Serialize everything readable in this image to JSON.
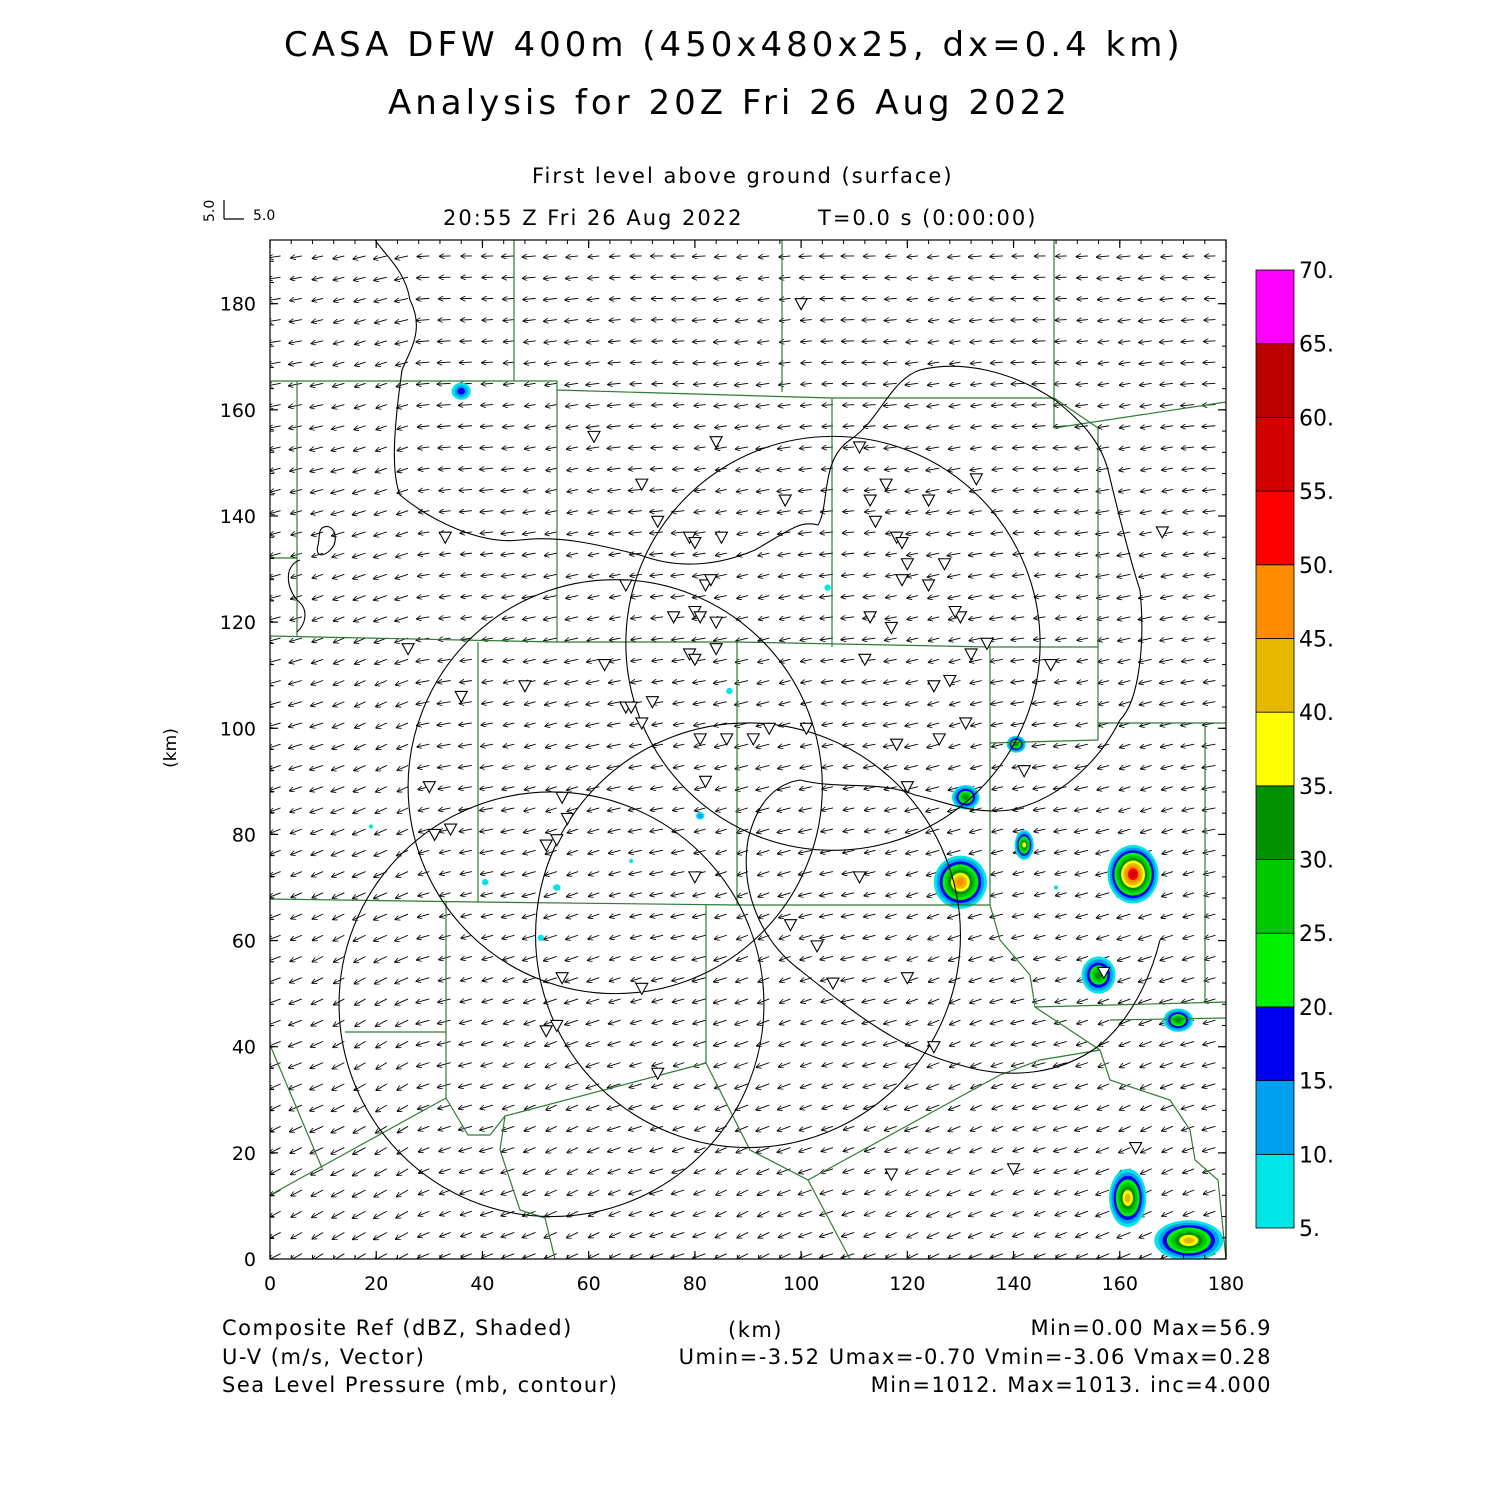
{
  "header": {
    "title_line1": "CASA DFW 400m (450x480x25, dx=0.4 km)",
    "title_line2": "Analysis for 20Z Fri 26 Aug 2022",
    "level": "First level above ground (surface)",
    "valid_time": "20:55 Z Fri 26 Aug 2022",
    "forecast_time": "T=0.0 s (0:00:00)",
    "vector_key_x": "5.0",
    "vector_key_y": "5.0"
  },
  "map": {
    "x_axis_unit": "(km)",
    "y_axis_unit": "(km)",
    "x_ticks": [
      "0",
      "20",
      "40",
      "60",
      "80",
      "100",
      "120",
      "140",
      "160",
      "180"
    ],
    "y_ticks": [
      "0",
      "20",
      "40",
      "60",
      "80",
      "100",
      "120",
      "140",
      "160",
      "180"
    ],
    "x_range": [
      0,
      180
    ],
    "y_range": [
      0,
      192
    ],
    "county_line_color": "#2e7d32",
    "contour_color": "#000000",
    "radar_rings": [
      {
        "cx": 106,
        "cy": 116,
        "r": 39
      },
      {
        "cx": 65,
        "cy": 89,
        "r": 39
      },
      {
        "cx": 90,
        "cy": 61,
        "r": 40
      },
      {
        "cx": 53,
        "cy": 48,
        "r": 40
      }
    ],
    "reflectivity_cells": [
      {
        "x": 36,
        "y": 163.5,
        "rx": 1.8,
        "ry": 1.6,
        "peak": 17
      },
      {
        "x": 131,
        "y": 87,
        "rx": 2.6,
        "ry": 2.3,
        "peak": 32
      },
      {
        "x": 140.5,
        "y": 97,
        "rx": 1.8,
        "ry": 1.6,
        "peak": 30
      },
      {
        "x": 142,
        "y": 78,
        "rx": 1.8,
        "ry": 2.8,
        "peak": 38
      },
      {
        "x": 130,
        "y": 71,
        "rx": 5,
        "ry": 5,
        "peak": 47
      },
      {
        "x": 162.5,
        "y": 72.5,
        "rx": 4.8,
        "ry": 5.5,
        "peak": 56.9
      },
      {
        "x": 156,
        "y": 53.5,
        "rx": 3.2,
        "ry": 3.5,
        "peak": 32
      },
      {
        "x": 171,
        "y": 45,
        "rx": 2.8,
        "ry": 2.2,
        "peak": 32
      },
      {
        "x": 161.5,
        "y": 11.5,
        "rx": 3.5,
        "ry": 5.5,
        "peak": 40
      },
      {
        "x": 173,
        "y": 3.5,
        "rx": 6.5,
        "ry": 3.8,
        "peak": 40
      },
      {
        "x": 86.5,
        "y": 107,
        "rx": 0.6,
        "ry": 0.6,
        "peak": 8
      },
      {
        "x": 105,
        "y": 126.5,
        "rx": 0.6,
        "ry": 0.6,
        "peak": 8
      },
      {
        "x": 81,
        "y": 83.5,
        "rx": 0.8,
        "ry": 0.7,
        "peak": 10
      },
      {
        "x": 54,
        "y": 70,
        "rx": 0.7,
        "ry": 0.6,
        "peak": 8
      },
      {
        "x": 40.5,
        "y": 71,
        "rx": 0.6,
        "ry": 0.6,
        "peak": 8
      },
      {
        "x": 51,
        "y": 60.5,
        "rx": 0.6,
        "ry": 0.6,
        "peak": 8
      },
      {
        "x": 19,
        "y": 81.5,
        "rx": 0.4,
        "ry": 0.4,
        "peak": 7
      },
      {
        "x": 148,
        "y": 70,
        "rx": 0.4,
        "ry": 0.4,
        "peak": 7
      },
      {
        "x": 68,
        "y": 75,
        "rx": 0.3,
        "ry": 0.3,
        "peak": 6
      }
    ],
    "stations": [
      [
        100,
        180
      ],
      [
        61,
        155
      ],
      [
        84,
        154
      ],
      [
        70,
        146
      ],
      [
        97,
        143
      ],
      [
        73,
        139
      ],
      [
        79,
        136
      ],
      [
        80,
        135
      ],
      [
        85,
        136
      ],
      [
        33,
        136
      ],
      [
        67,
        127
      ],
      [
        82,
        127
      ],
      [
        83,
        128
      ],
      [
        76,
        121
      ],
      [
        80,
        122
      ],
      [
        81,
        121
      ],
      [
        84,
        120
      ],
      [
        79,
        114
      ],
      [
        80,
        113
      ],
      [
        84,
        115
      ],
      [
        63,
        112
      ],
      [
        26,
        115
      ],
      [
        48,
        108
      ],
      [
        36,
        106
      ],
      [
        67,
        104
      ],
      [
        68,
        104
      ],
      [
        70,
        101
      ],
      [
        72,
        105
      ],
      [
        81,
        98
      ],
      [
        91,
        98
      ],
      [
        94,
        100
      ],
      [
        86,
        98
      ],
      [
        82,
        90
      ],
      [
        30,
        89
      ],
      [
        31,
        80
      ],
      [
        34,
        81
      ],
      [
        55,
        87
      ],
      [
        56,
        83
      ],
      [
        54,
        79
      ],
      [
        52,
        78
      ],
      [
        80,
        72
      ],
      [
        55,
        53
      ],
      [
        70,
        51
      ],
      [
        52,
        43
      ],
      [
        54,
        44
      ],
      [
        73,
        35
      ],
      [
        98,
        63
      ],
      [
        103,
        59
      ],
      [
        106,
        52
      ],
      [
        120,
        53
      ],
      [
        125,
        40
      ],
      [
        120,
        89
      ],
      [
        118,
        97
      ],
      [
        112,
        113
      ],
      [
        117,
        119
      ],
      [
        113,
        121
      ],
      [
        120,
        131
      ],
      [
        119,
        128
      ],
      [
        124,
        127
      ],
      [
        118,
        136
      ],
      [
        119,
        135
      ],
      [
        124,
        143
      ],
      [
        116,
        146
      ],
      [
        114,
        139
      ],
      [
        113,
        143
      ],
      [
        111,
        153
      ],
      [
        101,
        100
      ],
      [
        111,
        72
      ],
      [
        125,
        108
      ],
      [
        126,
        98
      ],
      [
        128,
        109
      ],
      [
        131,
        101
      ],
      [
        130,
        121
      ],
      [
        132,
        114
      ],
      [
        135,
        116
      ],
      [
        129,
        122
      ],
      [
        133,
        147
      ],
      [
        127,
        131
      ],
      [
        147,
        112
      ],
      [
        142,
        92
      ],
      [
        157,
        54
      ],
      [
        117,
        16
      ],
      [
        140,
        17
      ],
      [
        163,
        21
      ],
      [
        168,
        137
      ]
    ],
    "wind": {
      "u_mean": -2.8,
      "v_mean": -0.6,
      "key_speed": "5.0"
    }
  },
  "colorbar": {
    "labels": [
      "5.",
      "10.",
      "15.",
      "20.",
      "25.",
      "30.",
      "35.",
      "40.",
      "45.",
      "50.",
      "55.",
      "60.",
      "65.",
      "70."
    ],
    "colors": [
      "#00e5e5",
      "#00a0f0",
      "#0000f0",
      "#00f000",
      "#00c800",
      "#009000",
      "#ffff00",
      "#e6b800",
      "#ff8c00",
      "#ff0000",
      "#d40000",
      "#bc0000",
      "#ff00ff"
    ]
  },
  "footer": {
    "field1": "Composite Ref (dBZ, Shaded)",
    "unit_center": "(km)",
    "stats1": "Min=0.00 Max=56.9",
    "field2": "U-V (m/s, Vector)",
    "stats2": "Umin=-3.52 Umax=-0.70 Vmin=-3.06 Vmax=0.28",
    "field3": "Sea Level Pressure (mb, contour)",
    "stats3": "Min=1012. Max=1013. inc=4.000"
  }
}
